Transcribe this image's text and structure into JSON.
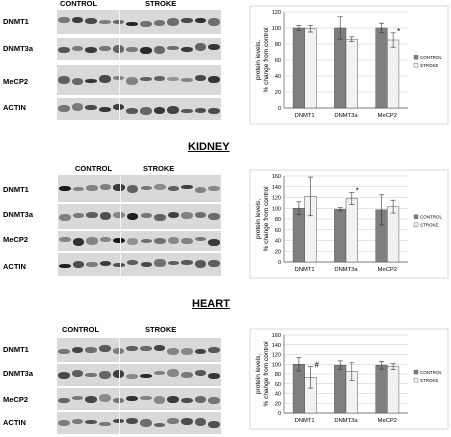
{
  "sections": [
    {
      "title": "",
      "groups": {
        "left": "CONTROL",
        "right": "STROKE"
      },
      "proteins": [
        "DNMT1",
        "DNMT3a",
        "MeCP2",
        "ACTIN"
      ]
    },
    {
      "title": "KIDNEY",
      "groups": {
        "left": "CONTROL",
        "right": "STROKE"
      },
      "proteins": [
        "DNMT1",
        "DNMT3a",
        "MeCP2",
        "ACTIN"
      ]
    },
    {
      "title": "HEART",
      "groups": {
        "left": "CONTROL",
        "right": "STROKE"
      },
      "proteins": [
        "DNMT1",
        "DNMT3a",
        "MeCP2",
        "ACTIN"
      ]
    }
  ],
  "colors": {
    "control": "#7f7f7f",
    "stroke": "#f2f2f2"
  },
  "chart_data": [
    {
      "type": "bar",
      "categories": [
        "DNMT1",
        "DNMT3a",
        "MeCP2"
      ],
      "series": [
        {
          "name": "CONTROL",
          "values": [
            100,
            100,
            100
          ],
          "errors": [
            3,
            14,
            6
          ]
        },
        {
          "name": "STROKE",
          "values": [
            99,
            86,
            85
          ],
          "errors": [
            4,
            3,
            9
          ]
        }
      ],
      "ylabel": "protein levels,\n% change from control",
      "ylim": [
        0,
        120
      ],
      "yticks": [
        0,
        20,
        40,
        60,
        80,
        100,
        120
      ],
      "annotations": [
        {
          "category": "MeCP2",
          "series": "STROKE",
          "text": "*"
        }
      ],
      "grid": "horizontal",
      "legend": "right"
    },
    {
      "type": "bar",
      "categories": [
        "DNMT1",
        "DNMT3a",
        "MeCP2"
      ],
      "series": [
        {
          "name": "CONTROL",
          "values": [
            100,
            98,
            97
          ],
          "errors": [
            12,
            3,
            28
          ]
        },
        {
          "name": "STROKE",
          "values": [
            122,
            118,
            103
          ],
          "errors": [
            36,
            11,
            12
          ]
        }
      ],
      "ylabel": "protein levels,\n% change from control",
      "ylim": [
        0,
        160
      ],
      "yticks": [
        0,
        20,
        40,
        60,
        80,
        100,
        120,
        140,
        160
      ],
      "annotations": [
        {
          "category": "DNMT3a",
          "series": "STROKE",
          "text": "*"
        }
      ],
      "grid": "horizontal",
      "legend": "right"
    },
    {
      "type": "bar",
      "categories": [
        "DNMT1",
        "DNMT3a",
        "MeCP2"
      ],
      "series": [
        {
          "name": "CONTROL",
          "values": [
            100,
            98,
            98
          ],
          "errors": [
            14,
            9,
            8
          ]
        },
        {
          "name": "STROKE",
          "values": [
            73,
            85,
            95
          ],
          "errors": [
            22,
            18,
            6
          ]
        }
      ],
      "ylabel": "protein levels,\n% change from control",
      "ylim": [
        0,
        160
      ],
      "yticks": [
        0,
        20,
        40,
        60,
        80,
        100,
        120,
        140,
        160
      ],
      "annotations": [
        {
          "category": "DNMT1",
          "series": "STROKE",
          "text": "#"
        }
      ],
      "grid": "horizontal",
      "legend": "right"
    }
  ]
}
